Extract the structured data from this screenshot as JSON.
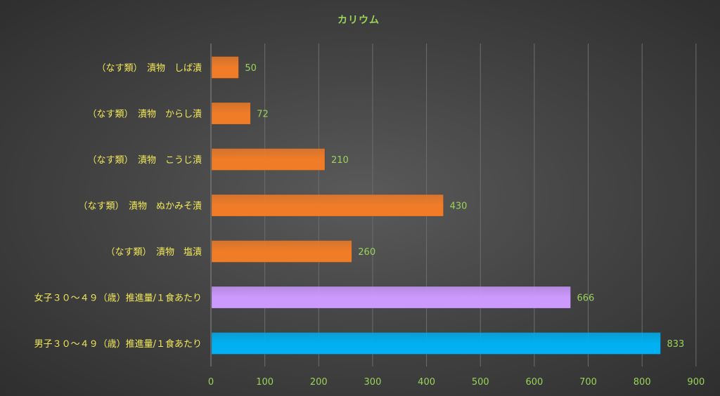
{
  "chart_data": {
    "type": "bar",
    "orientation": "horizontal",
    "title": "カリウム",
    "xlabel": "",
    "ylabel": "",
    "xlim": [
      0,
      900
    ],
    "ticks": [
      0,
      100,
      200,
      300,
      400,
      500,
      600,
      700,
      800,
      900
    ],
    "grid": "vertical",
    "legend": "none",
    "categories": [
      "（なす類）　漬物　しば漬",
      "（なす類）　漬物　からし漬",
      "（なす類）　漬物　こうじ漬",
      "（なす類）　漬物　ぬかみそ漬",
      "（なす類）　漬物　塩漬",
      "女子３０～４９（歳）推進量/１食あたり",
      "男子３０～４９（歳）推進量/１食あたり"
    ],
    "values": [
      50,
      72,
      210,
      430,
      260,
      666,
      833
    ],
    "bar_colors": [
      "#f07c28",
      "#f07c28",
      "#f07c28",
      "#f07c28",
      "#f07c28",
      "#cc99ff",
      "#00b0f0"
    ]
  }
}
